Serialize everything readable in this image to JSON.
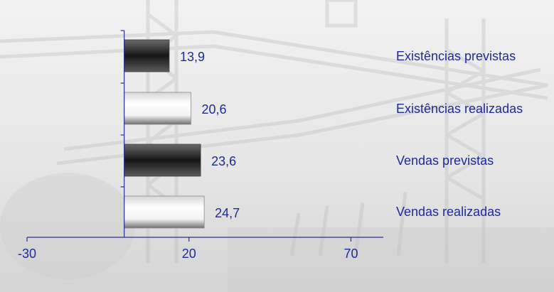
{
  "chart_data": {
    "type": "bar",
    "orientation": "horizontal",
    "categories": [
      "Existências previstas",
      "Existências realizadas",
      "Vendas previstas",
      "Vendas realizadas"
    ],
    "values": [
      13.9,
      20.6,
      23.6,
      24.7
    ],
    "value_labels": [
      "13,9",
      "20,6",
      "23,6",
      "24,7"
    ],
    "xlim": [
      -30,
      80
    ],
    "x_ticks": [
      -30,
      20,
      70
    ],
    "x_tick_labels": [
      "-30",
      "20",
      "70"
    ],
    "bar_styles": [
      "dark",
      "light",
      "dark",
      "light"
    ],
    "grid": false,
    "legend": "none",
    "colors": {
      "text": "#1f2a9a",
      "axis": "#2b2f8f",
      "bar_dark_edge": "#555555",
      "bar_dark_mid": "#1f1f1f",
      "bar_light_edge": "#d9d9d9",
      "bar_light_mid": "#ffffff",
      "bar_light_shadow": "#7a7a7a"
    }
  }
}
